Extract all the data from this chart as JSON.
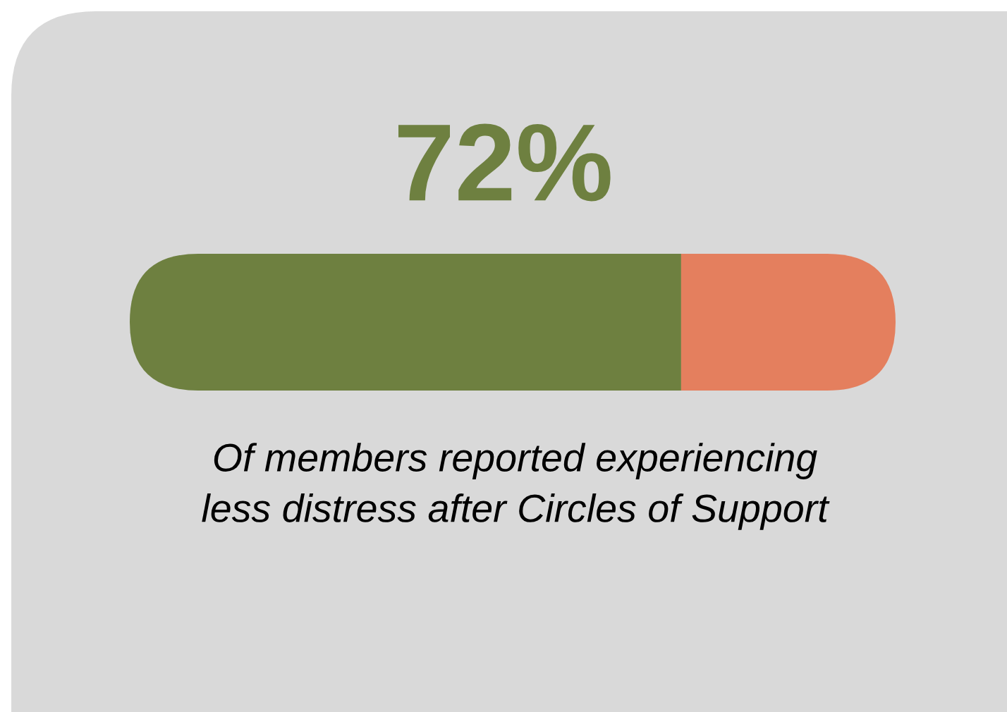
{
  "chart_data": {
    "type": "bar",
    "orientation": "horizontal",
    "stacked": true,
    "categories": [
      null
    ],
    "series": [
      {
        "color": "#6e8040",
        "values": [
          72
        ],
        "value_labels": [
          "72%"
        ]
      },
      {
        "color": "#e47f5e",
        "values": [
          28
        ]
      }
    ],
    "annotations": [
      "Of members reported experiencing\nless distress after Circles of Support"
    ],
    "legend": false
  }
}
